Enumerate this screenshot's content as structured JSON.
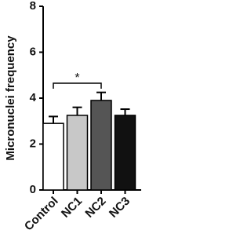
{
  "chart_data": {
    "type": "bar",
    "y_label": "Micronuclei frequency",
    "categories": [
      "Control",
      "NC1",
      "NC2",
      "NC3"
    ],
    "values": [
      2.9,
      3.25,
      3.9,
      3.25
    ],
    "errors": [
      0.3,
      0.35,
      0.35,
      0.27
    ],
    "colors": [
      "#ffffff",
      "#c8c8c8",
      "#555555",
      "#111111"
    ],
    "ylim": [
      0,
      8
    ],
    "yticks": [
      0,
      2,
      4,
      6,
      8
    ],
    "annotation": "*"
  }
}
